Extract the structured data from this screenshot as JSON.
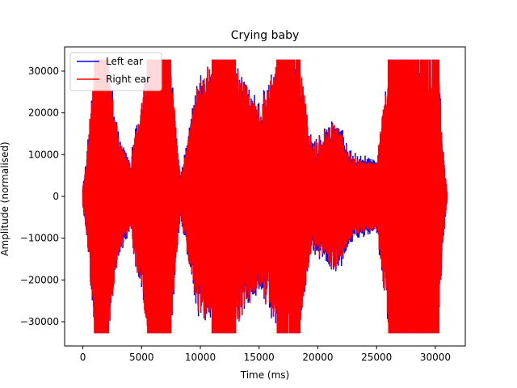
{
  "chart_data": {
    "type": "line",
    "title": "Crying baby",
    "xlabel": "Time (ms)",
    "ylabel": "Amplitude (normalised)",
    "xlim": [
      -1550,
      32550
    ],
    "ylim": [
      -35800,
      35800
    ],
    "xticks": [
      0,
      5000,
      10000,
      15000,
      20000,
      25000,
      30000
    ],
    "xtick_labels": [
      "0",
      "5000",
      "10000",
      "15000",
      "20000",
      "25000",
      "30000"
    ],
    "yticks": [
      -30000,
      -20000,
      -10000,
      0,
      10000,
      20000,
      30000
    ],
    "ytick_labels": [
      "−30000",
      "−20000",
      "−10000",
      "0",
      "10000",
      "20000",
      "30000"
    ],
    "grid": false,
    "legend_placement": "top-left",
    "clip_value": 32767,
    "series": [
      {
        "name": "Left ear",
        "color": "#0000ff",
        "envelope": [
          {
            "x": 0,
            "amp": 2500
          },
          {
            "x": 300,
            "amp": 9000
          },
          {
            "x": 1000,
            "amp": 32767
          },
          {
            "x": 2200,
            "amp": 32767
          },
          {
            "x": 3200,
            "amp": 14000
          },
          {
            "x": 4000,
            "amp": 9000
          },
          {
            "x": 5500,
            "amp": 32767
          },
          {
            "x": 7500,
            "amp": 32767
          },
          {
            "x": 8300,
            "amp": 5000
          },
          {
            "x": 9800,
            "amp": 30000
          },
          {
            "x": 11000,
            "amp": 32767
          },
          {
            "x": 13000,
            "amp": 32767
          },
          {
            "x": 15000,
            "amp": 24000
          },
          {
            "x": 16500,
            "amp": 32767
          },
          {
            "x": 18500,
            "amp": 32767
          },
          {
            "x": 19500,
            "amp": 14000
          },
          {
            "x": 21500,
            "amp": 20000
          },
          {
            "x": 23000,
            "amp": 11000
          },
          {
            "x": 25000,
            "amp": 9000
          },
          {
            "x": 26000,
            "amp": 32767
          },
          {
            "x": 30300,
            "amp": 32767
          },
          {
            "x": 30600,
            "amp": 14000
          },
          {
            "x": 31000,
            "amp": 1000
          }
        ]
      },
      {
        "name": "Right ear",
        "color": "#ff0000",
        "envelope": [
          {
            "x": 0,
            "amp": 2000
          },
          {
            "x": 300,
            "amp": 8500
          },
          {
            "x": 1000,
            "amp": 32767
          },
          {
            "x": 2200,
            "amp": 32767
          },
          {
            "x": 3200,
            "amp": 13000
          },
          {
            "x": 4000,
            "amp": 8500
          },
          {
            "x": 5500,
            "amp": 32767
          },
          {
            "x": 7500,
            "amp": 32767
          },
          {
            "x": 8300,
            "amp": 4500
          },
          {
            "x": 9800,
            "amp": 29000
          },
          {
            "x": 11000,
            "amp": 32767
          },
          {
            "x": 13000,
            "amp": 32767
          },
          {
            "x": 15000,
            "amp": 23000
          },
          {
            "x": 16500,
            "amp": 32767
          },
          {
            "x": 18500,
            "amp": 32767
          },
          {
            "x": 19500,
            "amp": 13000
          },
          {
            "x": 21500,
            "amp": 19000
          },
          {
            "x": 23000,
            "amp": 10000
          },
          {
            "x": 25000,
            "amp": 8500
          },
          {
            "x": 26000,
            "amp": 32767
          },
          {
            "x": 30300,
            "amp": 32767
          },
          {
            "x": 30600,
            "amp": 13000
          },
          {
            "x": 31000,
            "amp": 800
          }
        ]
      }
    ]
  }
}
